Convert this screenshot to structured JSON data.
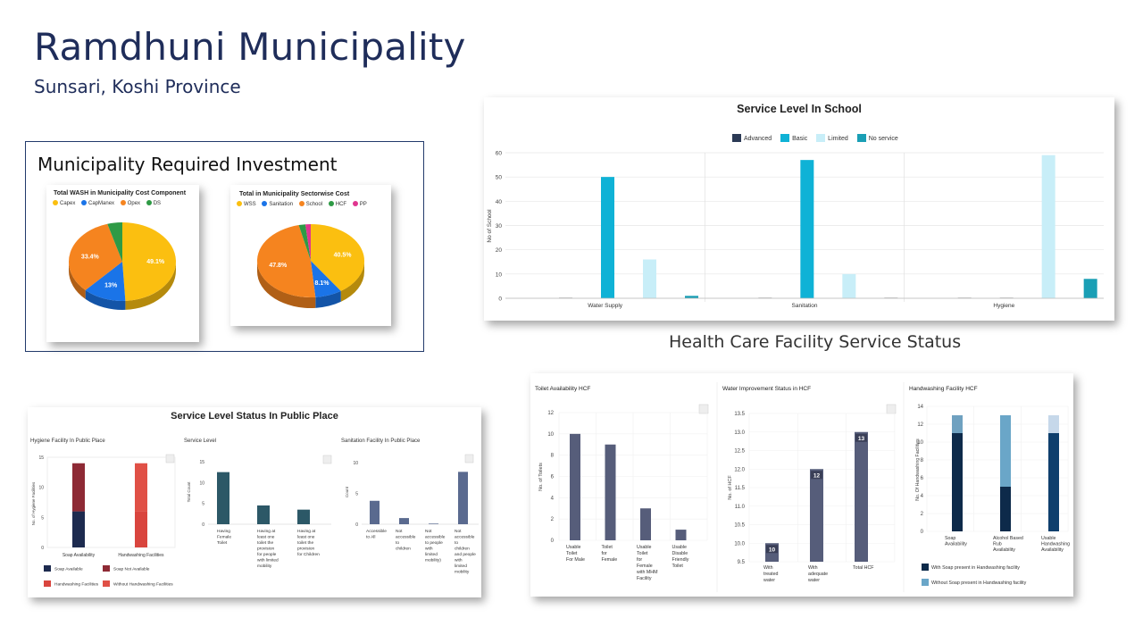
{
  "page": {
    "title": "Ramdhuni Municipality",
    "subtitle": "Sunsari, Koshi Province",
    "investment_heading": "Municipality Required Investment",
    "hcf_heading": "Health Care Facility Service Status"
  },
  "colors": {
    "title": "#1f2d5a",
    "advanced": "#2b3a55",
    "basic": "#0fb2d6",
    "limited": "#c8eef8",
    "no_service": "#1a9fb5",
    "navy": "#1d2b4f",
    "maroon": "#8e2a35",
    "red": "#d9453e",
    "teal_dark": "#2c5867",
    "slate": "#5a6a8f",
    "hcf_bar": "#565d7a",
    "hcf_navy": "#0d2a4a",
    "hcf_lightblue": "#6aa6c8"
  },
  "chart_data": [
    {
      "id": "wash-cost",
      "type": "pie",
      "title": "Total WASH in Municipality Cost Component",
      "labels": [
        "Capex",
        "CapManex",
        "Opex",
        "DS"
      ],
      "values": [
        49.1,
        13,
        33.4,
        4.5
      ],
      "value_labels": [
        "49.1%",
        "13%",
        "33.4%",
        ""
      ],
      "colors": [
        "#fbbf10",
        "#1a74e8",
        "#f5841f",
        "#2e9a45"
      ]
    },
    {
      "id": "sectorwise-cost",
      "type": "pie",
      "title": "Total in Municipality Sectorwise Cost",
      "labels": [
        "WSS",
        "Sanitation",
        "School",
        "HCF",
        "PP"
      ],
      "values": [
        40.5,
        8.1,
        47.8,
        2.0,
        1.6
      ],
      "value_labels": [
        "40.5%",
        "8.1%",
        "47.8%",
        "",
        ""
      ],
      "colors": [
        "#fbbf10",
        "#1a74e8",
        "#f5841f",
        "#2e9a45",
        "#e0358f"
      ]
    },
    {
      "id": "school",
      "type": "bar",
      "title": "Service Level In School",
      "ylabel": "No of School",
      "categories": [
        "Water Supply",
        "Sanitation",
        "Hygiene"
      ],
      "ylim": [
        0,
        60
      ],
      "yticks": [
        "0",
        "10",
        "20",
        "30",
        "40",
        "50",
        "60"
      ],
      "series": [
        {
          "name": "Advanced",
          "values": [
            0,
            0,
            0
          ]
        },
        {
          "name": "Basic",
          "values": [
            50,
            57,
            0
          ]
        },
        {
          "name": "Limited",
          "values": [
            16,
            10,
            59
          ]
        },
        {
          "name": "No service",
          "values": [
            1,
            0,
            8
          ]
        }
      ]
    },
    {
      "id": "pp-hygiene",
      "type": "bar",
      "title": "Service Level Status In Public Place",
      "subtitle": "Hygiene Facility In Public Place",
      "ylabel": "No. of Hygiene Facilities",
      "categories": [
        "Soap Availability",
        "Handwashing Facilities"
      ],
      "ylim": [
        0,
        15
      ],
      "yticks": [
        "0",
        "5",
        "10",
        "15"
      ],
      "series": [
        {
          "name": "Soap Available",
          "values": [
            6,
            0
          ]
        },
        {
          "name": "Soap Not Available",
          "values": [
            8,
            0
          ]
        },
        {
          "name": "Handwashing Facilities",
          "values": [
            0,
            6
          ]
        },
        {
          "name": "Without Handwashing Facilities",
          "values": [
            0,
            8
          ]
        }
      ]
    },
    {
      "id": "pp-service",
      "type": "bar",
      "title": "Service Level",
      "ylabel": "Total Count",
      "categories": [
        "Having Female Toilet",
        "Having at least one toilet the provision for people with limited mobility",
        "Having at least one toilet the provision for Children"
      ],
      "ylim": [
        0,
        15
      ],
      "yticks": [
        "0",
        "5",
        "10",
        "15"
      ],
      "values": [
        12.5,
        4.5,
        3.5
      ]
    },
    {
      "id": "pp-sanitation",
      "type": "bar",
      "title": "Sanitation Facility In Public Place",
      "ylabel": "Count",
      "categories": [
        "Accessible to All",
        "Not accessible to children",
        "Not accessible to people with limited mobility)",
        "Not accessible to children and people with limited mobility"
      ],
      "ylim": [
        0,
        10
      ],
      "yticks": [
        "0",
        "5",
        "10"
      ],
      "values": [
        3.8,
        1,
        0.1,
        8.5
      ]
    },
    {
      "id": "hcf-toilet",
      "type": "bar",
      "title": "Toilet Availability HCF",
      "ylabel": "No. of Toilets",
      "categories": [
        "Usable Toilet For Male",
        "Toilet for Female",
        "Usable Toilet for Female with MHM Facility",
        "Usable Disable Friendly Toilet"
      ],
      "ylim": [
        0,
        12
      ],
      "yticks": [
        "0",
        "2",
        "4",
        "6",
        "8",
        "10",
        "12"
      ],
      "values": [
        10,
        9,
        3,
        1
      ]
    },
    {
      "id": "hcf-water",
      "type": "bar",
      "title": "Water Improvement Status in HCF",
      "ylabel": "No. of HCF",
      "categories": [
        "With treated water",
        "With adequate water",
        "Total HCF"
      ],
      "ylim": [
        9.5,
        13.5
      ],
      "yticks": [
        "9.5",
        "10.0",
        "10.5",
        "11.0",
        "11.5",
        "12.0",
        "12.5",
        "13.0",
        "13.5"
      ],
      "values": [
        10,
        12,
        13
      ],
      "value_labels": [
        "10",
        "12",
        "13"
      ]
    },
    {
      "id": "hcf-handwashing",
      "type": "bar",
      "title": "Handwashing Facility HCF",
      "ylabel": "No. Of Handwashing Facilities",
      "categories": [
        "Soap Availability",
        "Alcohol Based Rub Availability",
        "Usable Handwashing Availability"
      ],
      "ylim": [
        0,
        14
      ],
      "yticks": [
        "0",
        "2",
        "4",
        "6",
        "8",
        "10",
        "12",
        "14"
      ],
      "series": [
        {
          "name": "With Soap present in Handwashing facility",
          "values": [
            11,
            5,
            11
          ]
        },
        {
          "name": "Without Soap present in Handwashing facility",
          "values": [
            2,
            8,
            2
          ]
        }
      ]
    }
  ]
}
